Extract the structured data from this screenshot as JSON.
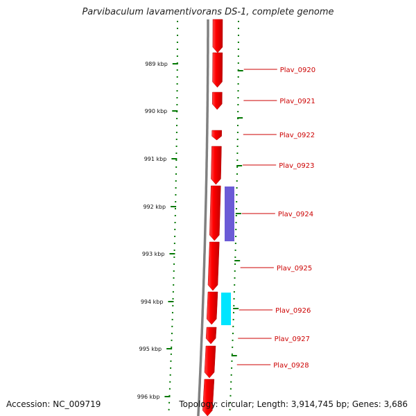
{
  "title": "Parvibaculum lavamentivorans DS-1, complete genome",
  "footer": {
    "accession": "Accession: NC_009719",
    "topology": "Topology: circular; Length: 3,914,745 bp; Genes: 3,686"
  },
  "colors": {
    "backbone": "#808080",
    "tick": "#007700",
    "gene_forward": "#ff0000",
    "gene_label": "#cc0000",
    "feature_purple": "#6b5bd6",
    "feature_cyan": "#00e5ff"
  },
  "ticks": [
    "989 kbp",
    "990 kbp",
    "991 kbp",
    "992 kbp",
    "993 kbp",
    "994 kbp",
    "995 kbp",
    "996 kbp"
  ],
  "genes": [
    "Plav_0920",
    "Plav_0921",
    "Plav_0922",
    "Plav_0923",
    "Plav_0924",
    "Plav_0925",
    "Plav_0926",
    "Plav_0927",
    "Plav_0928"
  ]
}
